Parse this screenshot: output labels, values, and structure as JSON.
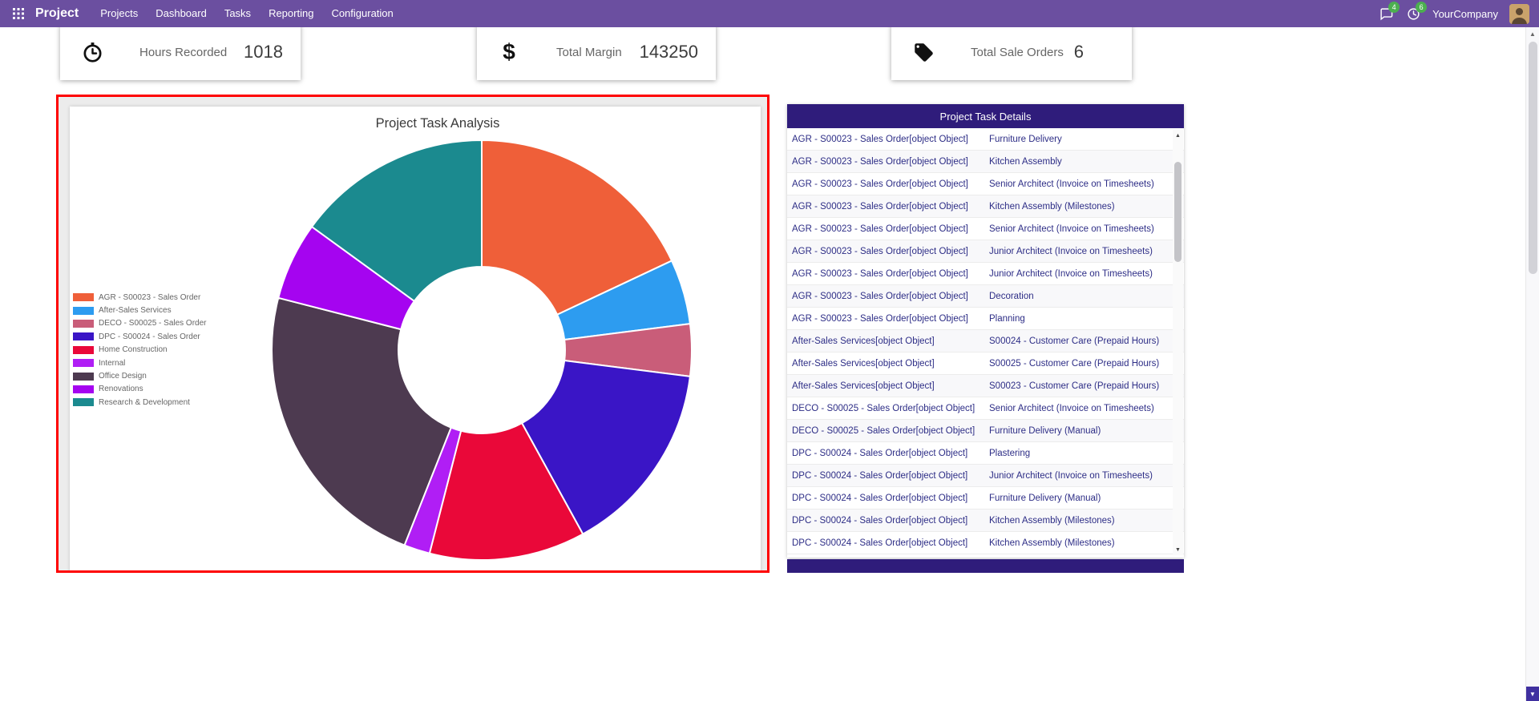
{
  "theme": {
    "navbar_bg": "#6b4fa0",
    "panel_header_bg": "#2f1c7b",
    "table_text": "#2d2d86",
    "highlight_border": "#fe0000",
    "badge_bg": "#4caf50"
  },
  "navbar": {
    "app_name": "Project",
    "menus": [
      "Projects",
      "Dashboard",
      "Tasks",
      "Reporting",
      "Configuration"
    ],
    "messages_badge": "4",
    "activities_badge": "6",
    "company": "YourCompany"
  },
  "kpis": [
    {
      "icon": "clock-icon",
      "label": "Hours Recorded",
      "value": "1018"
    },
    {
      "icon": "dollar-icon",
      "label": "Total Margin",
      "value": "143250"
    },
    {
      "icon": "tags-icon",
      "label": "Total Sale Orders",
      "value": "6"
    }
  ],
  "chart_data": {
    "type": "pie",
    "variant": "doughnut",
    "title": "Project Task Analysis",
    "legend_position": "left",
    "labels": [
      "AGR - S00023 - Sales Order",
      "After-Sales Services",
      "DECO - S00025 - Sales Order",
      "DPC - S00024 - Sales Order",
      "Home Construction",
      "Internal",
      "Office Design",
      "Renovations",
      "Research & Development"
    ],
    "values": [
      18,
      5,
      4,
      15,
      12,
      2,
      23,
      6,
      15
    ],
    "value_note": "share estimated from slice angles, percent",
    "colors": [
      "#ef5f39",
      "#2d9cf0",
      "#c95d79",
      "#3a15c6",
      "#ea0839",
      "#b01ef5",
      "#4d3a50",
      "#a504f0",
      "#1b8a8f"
    ]
  },
  "task_panel": {
    "title": "Project Task Details",
    "rows": [
      {
        "project": "AGR - S00023 - Sales Order[object Object]",
        "task": "Furniture Delivery"
      },
      {
        "project": "AGR - S00023 - Sales Order[object Object]",
        "task": "Kitchen Assembly"
      },
      {
        "project": "AGR - S00023 - Sales Order[object Object]",
        "task": "Senior Architect (Invoice on Timesheets)"
      },
      {
        "project": "AGR - S00023 - Sales Order[object Object]",
        "task": "Kitchen Assembly (Milestones)"
      },
      {
        "project": "AGR - S00023 - Sales Order[object Object]",
        "task": "Senior Architect (Invoice on Timesheets)"
      },
      {
        "project": "AGR - S00023 - Sales Order[object Object]",
        "task": "Junior Architect (Invoice on Timesheets)"
      },
      {
        "project": "AGR - S00023 - Sales Order[object Object]",
        "task": "Junior Architect (Invoice on Timesheets)"
      },
      {
        "project": "AGR - S00023 - Sales Order[object Object]",
        "task": "Decoration"
      },
      {
        "project": "AGR - S00023 - Sales Order[object Object]",
        "task": "Planning"
      },
      {
        "project": "After-Sales Services[object Object]",
        "task": "S00024 - Customer Care (Prepaid Hours)"
      },
      {
        "project": "After-Sales Services[object Object]",
        "task": "S00025 - Customer Care (Prepaid Hours)"
      },
      {
        "project": "After-Sales Services[object Object]",
        "task": "S00023 - Customer Care (Prepaid Hours)"
      },
      {
        "project": "DECO - S00025 - Sales Order[object Object]",
        "task": "Senior Architect (Invoice on Timesheets)"
      },
      {
        "project": "DECO - S00025 - Sales Order[object Object]",
        "task": "Furniture Delivery (Manual)"
      },
      {
        "project": "DPC - S00024 - Sales Order[object Object]",
        "task": "Plastering"
      },
      {
        "project": "DPC - S00024 - Sales Order[object Object]",
        "task": "Junior Architect (Invoice on Timesheets)"
      },
      {
        "project": "DPC - S00024 - Sales Order[object Object]",
        "task": "Furniture Delivery (Manual)"
      },
      {
        "project": "DPC - S00024 - Sales Order[object Object]",
        "task": "Kitchen Assembly (Milestones)"
      },
      {
        "project": "DPC - S00024 - Sales Order[object Object]",
        "task": "Kitchen Assembly (Milestones)"
      }
    ]
  }
}
